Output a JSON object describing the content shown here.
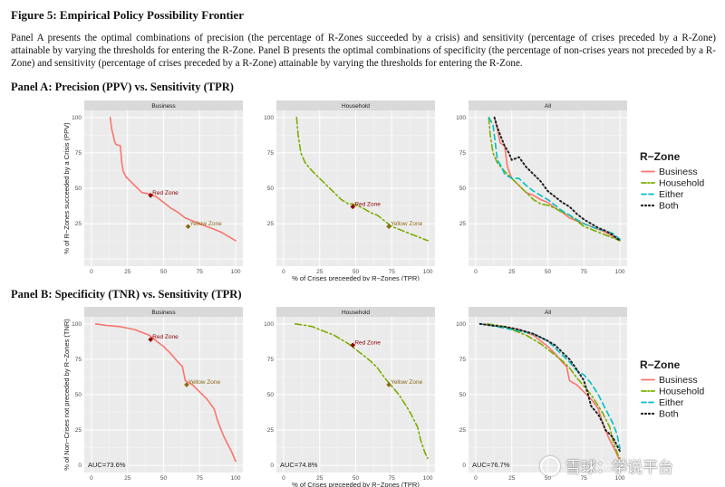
{
  "figure_title": "Figure 5: Empirical Policy Possibility Frontier",
  "caption": "Panel A presents the optimal combinations of precision (the percentage of R-Zones succeeded by a crisis) and sensitivity (percentage of crises preceded by a R-Zone) attainable by varying the thresholds for entering the R-Zone. Panel B presents the optimal combinations of specificity (the percentage of non-crises years not preceded by a R-Zone) and sensitivity (percentage of crises preceded by a R-Zone) attainable by varying the thresholds for entering the R-Zone.",
  "watermark": "雪球：学说平台",
  "colors": {
    "Business": "#F8766D",
    "Household": "#7CAE00",
    "Either": "#00BFC4",
    "Both": "#222222",
    "red_zone": "#8B0000",
    "yellow_zone": "#8B6914",
    "panel_bg": "#EBEBEB",
    "strip_bg": "#D9D9D9"
  },
  "chart_data": [
    {
      "type": "line",
      "title": "Panel A: Precision (PPV) vs. Sensitivity (TPR)",
      "ylabel": "% of R−Zones succeeded by a Crisis (PPV)",
      "xlabel": "% of Crises preceeded by R−Zones (TPR)",
      "xlim": [
        0,
        100
      ],
      "ylim": [
        0,
        100
      ],
      "xticks": [
        0,
        25,
        50,
        75,
        100
      ],
      "yticks": [
        25,
        50,
        75,
        100
      ],
      "grid": true,
      "legend": {
        "title": "R−Zone",
        "entries": [
          "Business",
          "Household",
          "Either",
          "Both"
        ],
        "placement": "right"
      },
      "facets": [
        {
          "label": "Business",
          "series": [
            {
              "name": "Business",
              "x": [
                13,
                14,
                15,
                16,
                17,
                20,
                21,
                22,
                23,
                24,
                25,
                30,
                35,
                40,
                45,
                50,
                55,
                60,
                65,
                70,
                75,
                80,
                85,
                90,
                95,
                100
              ],
              "y": [
                100,
                92,
                88,
                83,
                81,
                80,
                68,
                62,
                60,
                58,
                57,
                52,
                47,
                46,
                44,
                40,
                36,
                33,
                29,
                27,
                25,
                23,
                21,
                19,
                16,
                13
              ]
            }
          ],
          "markers": [
            {
              "label": "Red Zone",
              "x": 41,
              "y": 45
            },
            {
              "label": "Yellow Zone",
              "x": 67,
              "y": 23
            }
          ]
        },
        {
          "label": "Household",
          "series": [
            {
              "name": "Household",
              "x": [
                9,
                10,
                12,
                15,
                20,
                25,
                30,
                35,
                40,
                45,
                48,
                55,
                60,
                65,
                70,
                75,
                80,
                85,
                90,
                95,
                100
              ],
              "y": [
                100,
                88,
                75,
                68,
                62,
                57,
                52,
                47,
                42,
                39,
                39,
                36,
                33,
                31,
                27,
                23,
                21,
                19,
                17,
                15,
                13
              ]
            }
          ],
          "markers": [
            {
              "label": "Red Zone",
              "x": 48,
              "y": 37
            },
            {
              "label": "Yellow Zone",
              "x": 73,
              "y": 23
            }
          ]
        },
        {
          "label": "All",
          "series": [
            {
              "name": "Business",
              "x": [
                13,
                15,
                17,
                20,
                22,
                25,
                30,
                35,
                40,
                45,
                50,
                55,
                60,
                65,
                70,
                75,
                80,
                85,
                90,
                95,
                100
              ],
              "y": [
                100,
                92,
                82,
                80,
                65,
                57,
                52,
                47,
                45,
                42,
                40,
                36,
                33,
                29,
                27,
                25,
                23,
                21,
                19,
                16,
                13
              ]
            },
            {
              "name": "Household",
              "x": [
                9,
                10,
                12,
                15,
                20,
                25,
                30,
                35,
                40,
                45,
                50,
                55,
                60,
                65,
                70,
                75,
                80,
                85,
                90,
                95,
                100
              ],
              "y": [
                100,
                88,
                75,
                68,
                62,
                57,
                52,
                47,
                42,
                39,
                38,
                36,
                33,
                31,
                27,
                23,
                21,
                19,
                17,
                15,
                13
              ]
            },
            {
              "name": "Either",
              "x": [
                9,
                12,
                15,
                18,
                20,
                25,
                30,
                35,
                40,
                45,
                50,
                55,
                60,
                65,
                70,
                75,
                80,
                85,
                90,
                95,
                100
              ],
              "y": [
                100,
                95,
                70,
                65,
                60,
                57,
                57,
                52,
                48,
                45,
                42,
                38,
                34,
                31,
                28,
                25,
                23,
                21,
                20,
                18,
                14
              ]
            },
            {
              "name": "Both",
              "x": [
                13,
                15,
                18,
                20,
                23,
                25,
                30,
                35,
                40,
                45,
                50,
                55,
                60,
                65,
                70,
                75,
                80,
                85,
                90,
                95,
                100
              ],
              "y": [
                100,
                93,
                85,
                80,
                75,
                70,
                72,
                65,
                60,
                55,
                48,
                44,
                40,
                37,
                32,
                28,
                25,
                22,
                20,
                17,
                13
              ]
            }
          ]
        }
      ]
    },
    {
      "type": "line",
      "title": "Panel B: Specificity (TNR) vs. Sensitivity (TPR)",
      "ylabel": "% of Non−Crises not preceded by R−Zones (TNR)",
      "xlabel": "% of Crises preceeded by R−Zones (TPR)",
      "xlim": [
        0,
        100
      ],
      "ylim": [
        0,
        100
      ],
      "xticks": [
        0,
        25,
        50,
        75,
        100
      ],
      "yticks": [
        0,
        25,
        50,
        75,
        100
      ],
      "grid": true,
      "legend": {
        "title": "R−Zone",
        "entries": [
          "Business",
          "Household",
          "Either",
          "Both"
        ],
        "placement": "right"
      },
      "facets": [
        {
          "label": "Business",
          "auc": "AUC=73.6%",
          "series": [
            {
              "name": "Business",
              "x": [
                3,
                10,
                20,
                30,
                40,
                45,
                50,
                55,
                60,
                63,
                65,
                70,
                75,
                80,
                85,
                88,
                90,
                92,
                95,
                97,
                100
              ],
              "y": [
                100,
                99,
                98,
                96,
                92,
                88,
                84,
                79,
                73,
                70,
                60,
                57,
                52,
                47,
                40,
                30,
                25,
                20,
                14,
                10,
                3
              ]
            }
          ],
          "markers": [
            {
              "label": "Red Zone",
              "x": 41,
              "y": 89
            },
            {
              "label": "Yellow Zone",
              "x": 66,
              "y": 57
            }
          ]
        },
        {
          "label": "Household",
          "auc": "AUC=74.8%",
          "series": [
            {
              "name": "Household",
              "x": [
                8,
                15,
                20,
                25,
                30,
                35,
                40,
                45,
                50,
                55,
                60,
                65,
                70,
                75,
                80,
                85,
                88,
                90,
                93,
                95,
                98,
                100
              ],
              "y": [
                100,
                99,
                98,
                96,
                94,
                92,
                89,
                86,
                82,
                78,
                74,
                69,
                62,
                56,
                50,
                42,
                37,
                33,
                27,
                18,
                9,
                5
              ]
            }
          ],
          "markers": [
            {
              "label": "Red Zone",
              "x": 48,
              "y": 85
            },
            {
              "label": "Yellow Zone",
              "x": 73,
              "y": 57
            }
          ]
        },
        {
          "label": "All",
          "auc": "AUC=76.7%",
          "series": [
            {
              "name": "Business",
              "x": [
                3,
                10,
                20,
                30,
                40,
                45,
                50,
                55,
                60,
                63,
                65,
                70,
                75,
                80,
                85,
                88,
                90,
                92,
                95,
                97,
                100
              ],
              "y": [
                100,
                99,
                98,
                96,
                92,
                88,
                84,
                79,
                73,
                70,
                60,
                57,
                52,
                47,
                40,
                30,
                25,
                20,
                14,
                10,
                3
              ]
            },
            {
              "name": "Household",
              "x": [
                8,
                15,
                20,
                25,
                30,
                35,
                40,
                45,
                50,
                55,
                60,
                65,
                70,
                75,
                80,
                85,
                88,
                90,
                93,
                95,
                98,
                100
              ],
              "y": [
                100,
                99,
                98,
                96,
                94,
                92,
                89,
                86,
                82,
                78,
                74,
                69,
                62,
                56,
                50,
                42,
                37,
                33,
                27,
                18,
                9,
                5
              ]
            },
            {
              "name": "Either",
              "x": [
                3,
                10,
                20,
                30,
                40,
                50,
                55,
                60,
                65,
                70,
                75,
                80,
                85,
                90,
                95,
                98,
                100
              ],
              "y": [
                100,
                99,
                97,
                95,
                93,
                88,
                83,
                78,
                73,
                67,
                64,
                58,
                50,
                40,
                30,
                22,
                12
              ]
            },
            {
              "name": "Both",
              "x": [
                3,
                10,
                20,
                30,
                40,
                50,
                55,
                60,
                65,
                70,
                75,
                78,
                80,
                85,
                88,
                90,
                95,
                100
              ],
              "y": [
                100,
                99,
                98,
                96,
                93,
                88,
                85,
                80,
                75,
                68,
                60,
                50,
                42,
                36,
                30,
                25,
                20,
                10
              ]
            }
          ]
        }
      ]
    }
  ]
}
